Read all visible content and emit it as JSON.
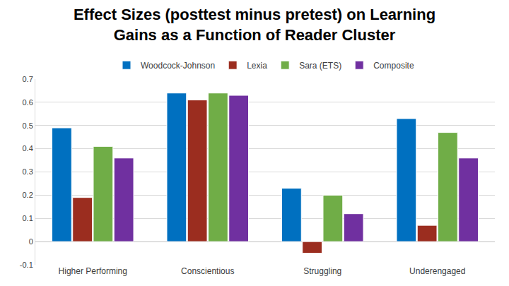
{
  "chart_data": {
    "type": "bar",
    "title": "Effect Sizes (posttest minus pretest) on Learning\nGains as a Function of Reader Cluster",
    "categories": [
      "Higher Performing",
      "Conscientious",
      "Struggling",
      "Underengaged"
    ],
    "series": [
      {
        "name": "Woodcock-Johnson",
        "color": "#0070c0",
        "values": [
          0.49,
          0.64,
          0.23,
          0.53
        ]
      },
      {
        "name": "Lexia",
        "color": "#9b2d1f",
        "values": [
          0.19,
          0.61,
          -0.05,
          0.07
        ]
      },
      {
        "name": "Sara (ETS)",
        "color": "#70ad47",
        "values": [
          0.41,
          0.64,
          0.2,
          0.47
        ]
      },
      {
        "name": "Composite",
        "color": "#7030a0",
        "values": [
          0.36,
          0.63,
          0.12,
          0.36
        ]
      }
    ],
    "ylim": [
      -0.1,
      0.7
    ],
    "yticks": [
      -0.1,
      0,
      0.1,
      0.2,
      0.3,
      0.4,
      0.5,
      0.6,
      0.7
    ],
    "grid": true,
    "legend": "top"
  }
}
